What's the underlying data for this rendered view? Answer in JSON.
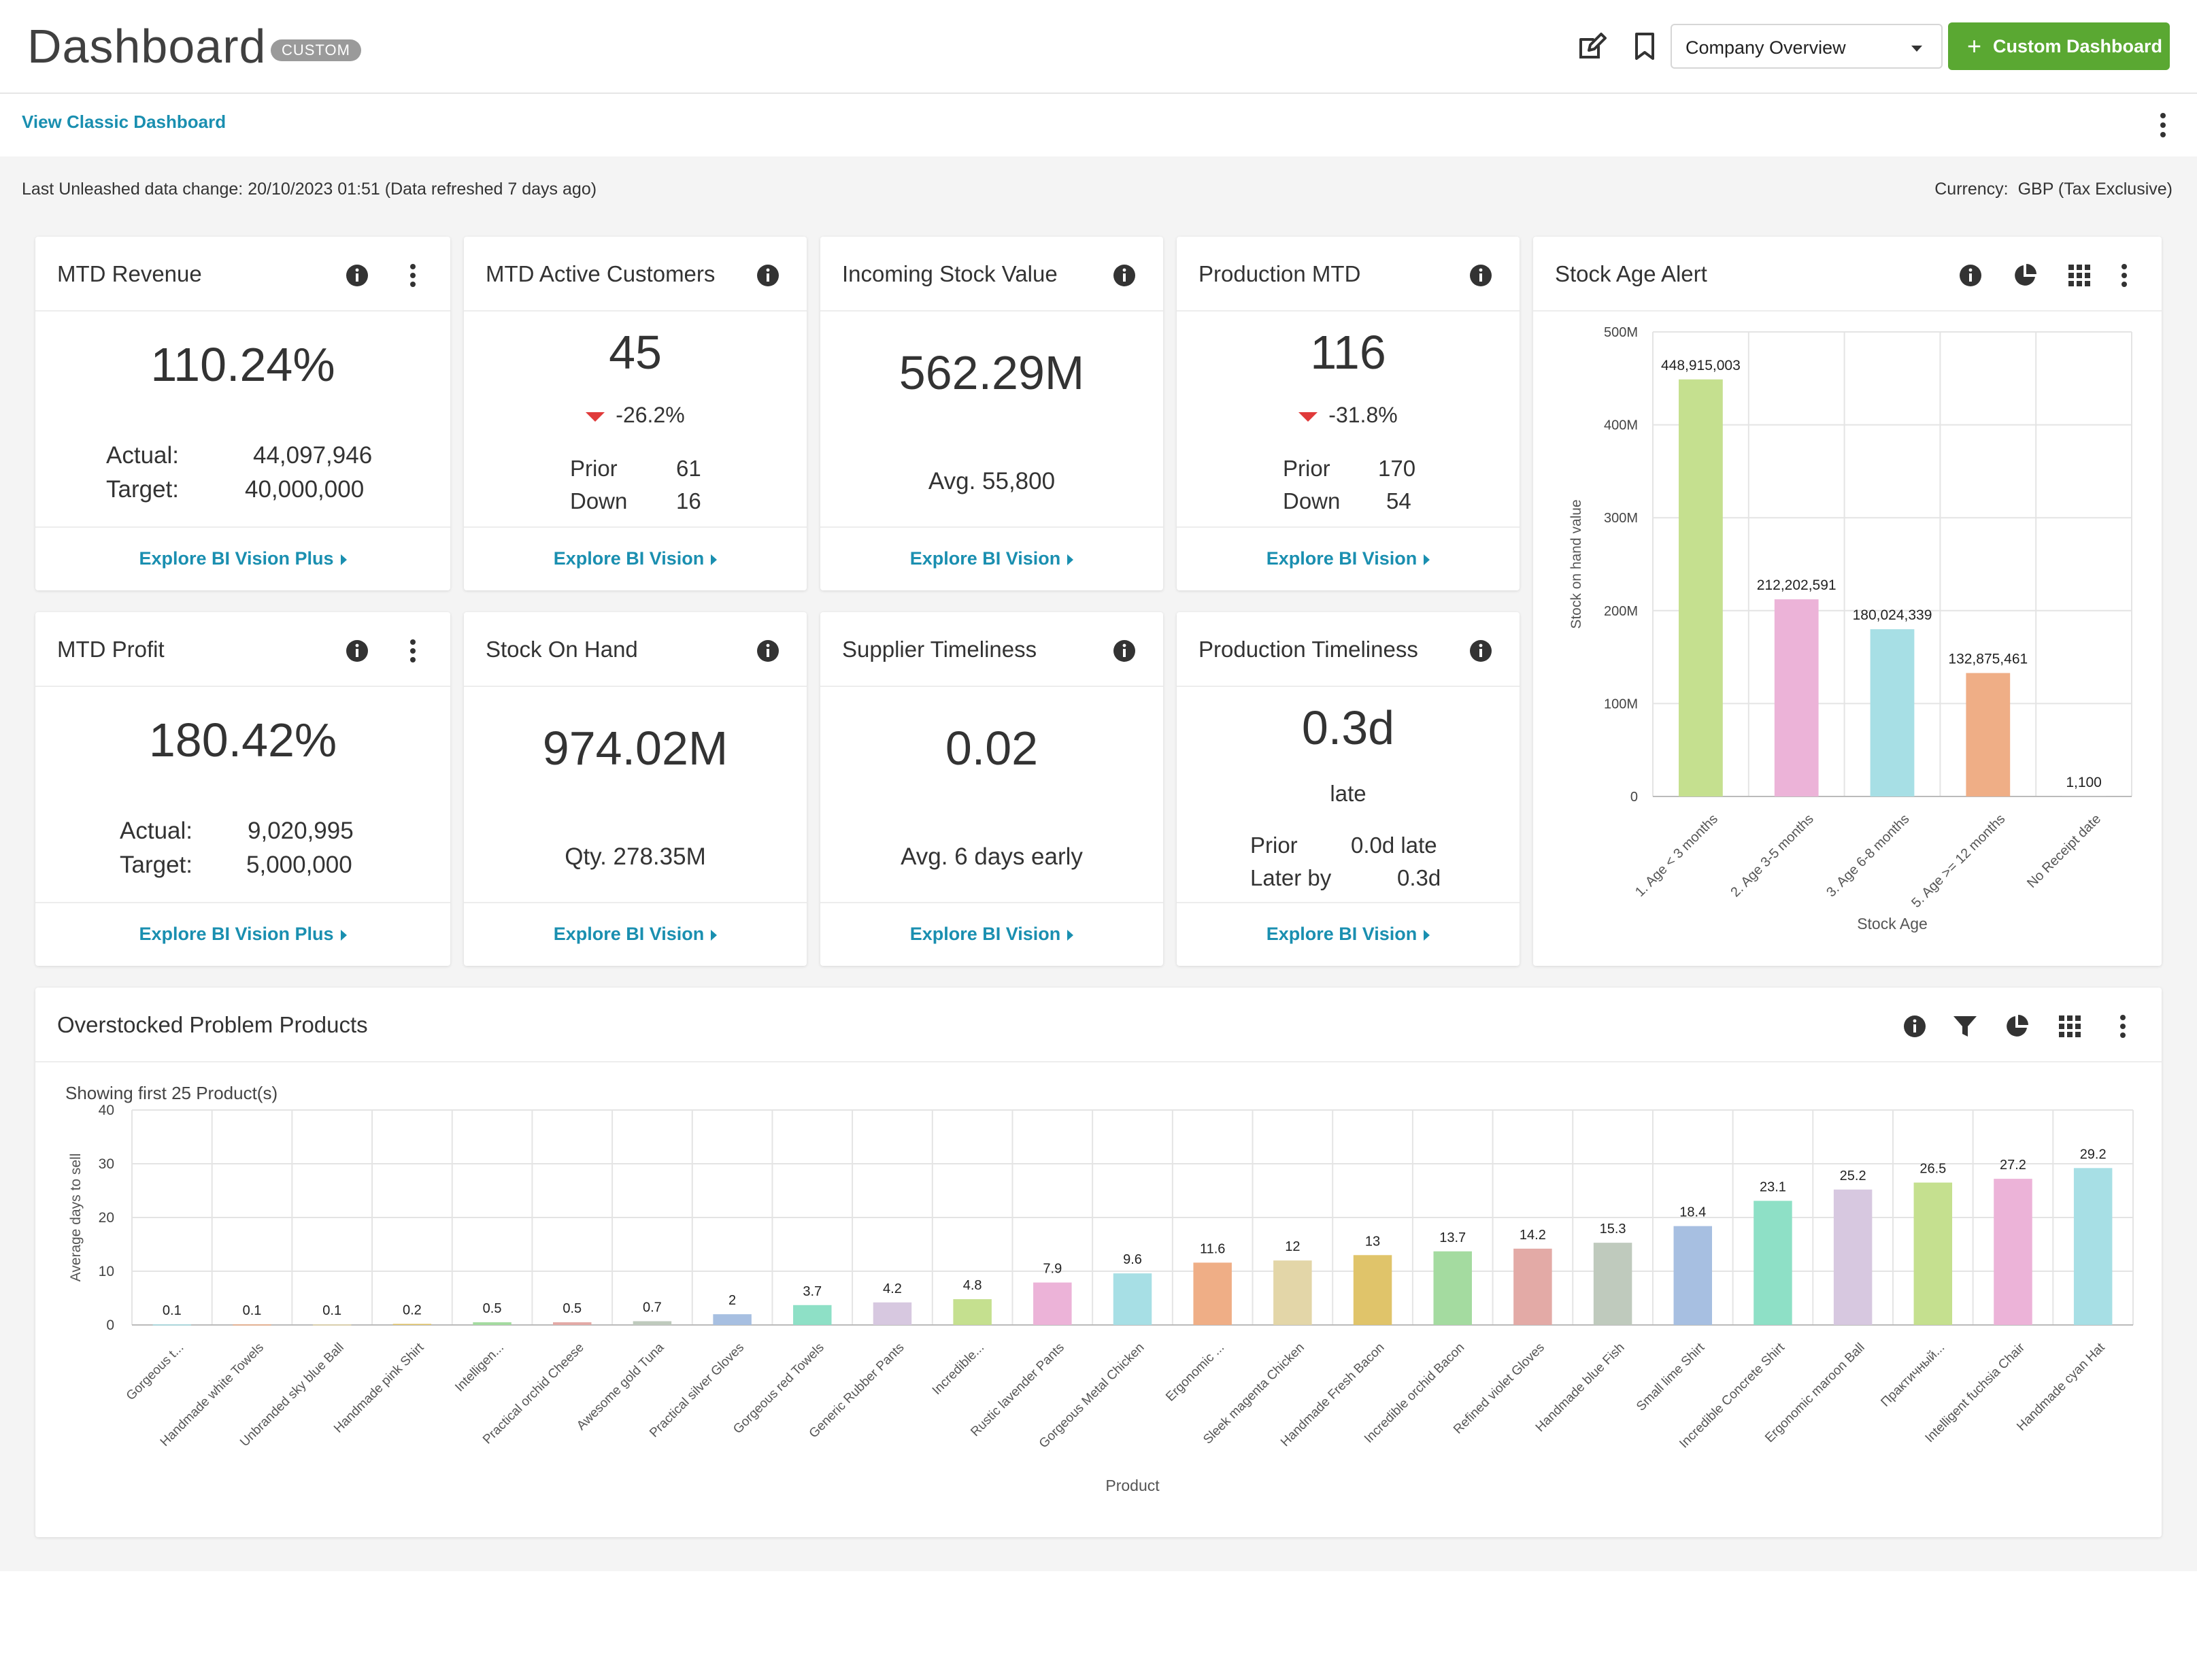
{
  "header": {
    "title": "Dashboard",
    "badge": "CUSTOM",
    "icons": [
      "edit-icon",
      "bookmark-icon"
    ],
    "dashboard_select": "Company Overview",
    "custom_dashboard_button": "Custom Dashboard",
    "accent_color": "#5aa832"
  },
  "subheader": {
    "classic_link": "View Classic Dashboard"
  },
  "status": {
    "data_change": "Last Unleashed data change: 20/10/2023 01:51 (Data refreshed 7 days ago)",
    "currency_label": "Currency:",
    "currency_value": "GBP (Tax Exclusive)"
  },
  "cards": {
    "mtd_revenue": {
      "title": "MTD Revenue",
      "value": "110.24%",
      "actual_label": "Actual:",
      "actual_value": "44,097,946",
      "target_label": "Target:",
      "target_value": "40,000,000",
      "link": "Explore BI Vision Plus"
    },
    "mtd_active_customers": {
      "title": "MTD Active Customers",
      "value": "45",
      "delta": "-26.2%",
      "prior_label": "Prior",
      "prior_value": "61",
      "down_label": "Down",
      "down_value": "16",
      "link": "Explore BI Vision"
    },
    "incoming_stock_value": {
      "title": "Incoming Stock Value",
      "value": "562.29M",
      "sub": "Avg. 55,800",
      "link": "Explore BI Vision"
    },
    "production_mtd": {
      "title": "Production MTD",
      "value": "116",
      "delta": "-31.8%",
      "prior_label": "Prior",
      "prior_value": "170",
      "down_label": "Down",
      "down_value": "54",
      "link": "Explore BI Vision"
    },
    "mtd_profit": {
      "title": "MTD Profit",
      "value": "180.42%",
      "actual_label": "Actual:",
      "actual_value": "9,020,995",
      "target_label": "Target:",
      "target_value": "5,000,000",
      "link": "Explore BI Vision Plus"
    },
    "stock_on_hand": {
      "title": "Stock On Hand",
      "value": "974.02M",
      "sub": "Qty. 278.35M",
      "link": "Explore BI Vision"
    },
    "supplier_timeliness": {
      "title": "Supplier Timeliness",
      "value": "0.02",
      "sub": "Avg. 6 days early",
      "link": "Explore BI Vision"
    },
    "production_timeliness": {
      "title": "Production Timeliness",
      "value": "0.3d",
      "value_sub": "late",
      "prior_label": "Prior",
      "prior_value": "0.0d late",
      "later_label": "Later by",
      "later_value": "0.3d",
      "link": "Explore BI Vision"
    },
    "stock_age_alert": {
      "title": "Stock Age Alert"
    },
    "overstocked": {
      "title": "Overstocked Problem Products",
      "showing": "Showing first 25 Product(s)"
    }
  },
  "chart_data": [
    {
      "type": "bar",
      "title": "Stock Age Alert",
      "xlabel": "Stock Age",
      "ylabel": "Stock on hand value",
      "categories": [
        "1. Age < 3 months",
        "2. Age 3-5 months",
        "3. Age 6-8 months",
        "5. Age >= 12 months",
        "No Receipt date"
      ],
      "values": [
        448915003,
        212202591,
        180024339,
        132875461,
        1100
      ],
      "value_labels": [
        "448,915,003",
        "212,202,591",
        "180,024,339",
        "132,875,461",
        "1,100"
      ],
      "colors": [
        "#c5e08f",
        "#ecb3d8",
        "#a7dfe5",
        "#efae86",
        "#d9d9d9"
      ],
      "ylim": [
        0,
        500000000
      ],
      "yticks": [
        0,
        100000000,
        200000000,
        300000000,
        400000000,
        500000000
      ],
      "ytick_labels": [
        "0",
        "100M",
        "200M",
        "300M",
        "400M",
        "500M"
      ],
      "grid": true
    },
    {
      "type": "bar",
      "title": "Overstocked Problem Products",
      "xlabel": "Product",
      "ylabel": "Average days to sell",
      "categories": [
        "Gorgeous t...",
        "Handmade white Towels",
        "Unbranded sky blue Ball",
        "Handmade pink Shirt",
        "Intelligen...",
        "Practical orchid Cheese",
        "Awesome gold Tuna",
        "Practical silver Gloves",
        "Gorgeous red Towels",
        "Generic Rubber Pants",
        "Incredible...",
        "Rustic lavender Pants",
        "Gorgeous Metal Chicken",
        "Ergonomic ...",
        "Sleek magenta Chicken",
        "Handmade Fresh Bacon",
        "Incredible orchid Bacon",
        "Refined violet Gloves",
        "Handmade blue Fish",
        "Small lime Shirt",
        "Incredible Concrete Shirt",
        "Ergonomic maroon Ball",
        "Практичный...",
        "Intelligent fuchsia Chair",
        "Handmade cyan Hat"
      ],
      "values": [
        0.1,
        0.1,
        0.1,
        0.2,
        0.5,
        0.5,
        0.7,
        2,
        3.7,
        4.2,
        4.8,
        7.9,
        9.6,
        11.6,
        12,
        13,
        13.7,
        14.2,
        15.3,
        18.4,
        23.1,
        25.2,
        26.5,
        27.2,
        29.2
      ],
      "colors": [
        "#a7dfe5",
        "#efae86",
        "#e3d6a8",
        "#e0c46a",
        "#a4dba0",
        "#e3aaa6",
        "#bfcabd",
        "#a7bfe1",
        "#8ee0c6",
        "#d7c8e0",
        "#c5e08f",
        "#ecb3d8",
        "#a7dfe5",
        "#efae86",
        "#e3d6a8",
        "#e0c46a",
        "#a4dba0",
        "#e3aaa6",
        "#bfcabd",
        "#a7bfe1",
        "#8ee0c6",
        "#d7c8e0",
        "#c5e08f",
        "#ecb3d8",
        "#a7dfe5"
      ],
      "ylim": [
        0,
        40
      ],
      "yticks": [
        0,
        10,
        20,
        30,
        40
      ],
      "grid": true
    }
  ]
}
